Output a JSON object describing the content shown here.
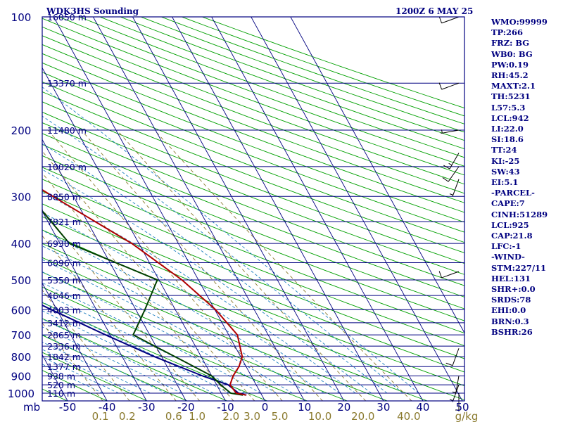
{
  "header": {
    "title": "WDK3HS Sounding",
    "datetime": "1200Z  6 MAY 25"
  },
  "side_panel": [
    "WMO:99999",
    "TP:266",
    "FRZ: BG",
    "WB0: BG",
    "PW:0.19",
    "RH:45.2",
    "MAXT:2.1",
    "TH:5231",
    "L57:5.3",
    "LCL:942",
    "LI:22.0",
    "SI:18.6",
    "TT:24",
    "KI:-25",
    "SW:43",
    "EI:5.1",
    "-PARCEL-",
    "CAPE:7",
    "CINH:51289",
    "LCL:925",
    "CAP:21.8",
    "LFC:-1",
    "-WIND-",
    "STM:227/11",
    "HEL:131",
    "SHR+:0.0",
    "SRDS:78",
    "EHI:0.0",
    "BRN:0.3",
    "BSHR:26"
  ],
  "colors": {
    "frame": "#000080",
    "isobar": "#000080",
    "isotherm": "#000080",
    "dry_adiabat": "#00a000",
    "moist_adiabat": "#2080c0",
    "mixing_ratio": "#8a7a2e",
    "temperature": "#b00000",
    "dewpoint": "#004000",
    "parcel": "#000080",
    "wind": "#000000"
  },
  "chart_data": {
    "type": "skew-t log-p",
    "y_axis_unit": "mb",
    "pressure_ticks": [
      100,
      200,
      300,
      400,
      500,
      600,
      700,
      800,
      900,
      1000
    ],
    "temperature_ticks": [
      -50,
      -40,
      -30,
      -20,
      -10,
      0,
      10,
      20,
      30,
      40,
      50
    ],
    "temperature_tick_labels": [
      "-50",
      "-40",
      "-30",
      "-20",
      "-10",
      "0",
      "10",
      "20",
      "30",
      "40",
      "50"
    ],
    "mixing_ratio_unit": "g/kg",
    "mixing_ratio_ticks": [
      0.1,
      0.2,
      0.6,
      1.0,
      2.0,
      3.0,
      5.0,
      10.0,
      20.0,
      40.0
    ],
    "mixing_ratio_labels": [
      "0.1",
      "0.2",
      "0.6",
      "1.0",
      "2.0",
      "3.0",
      "5.0",
      "10.0",
      "20.0",
      "40.0"
    ],
    "height_labels": [
      {
        "p": 100,
        "label": "16050 m"
      },
      {
        "p": 150,
        "label": "13370 m"
      },
      {
        "p": 200,
        "label": "11480 m"
      },
      {
        "p": 250,
        "label": "10020 m"
      },
      {
        "p": 300,
        "label": "8850 m"
      },
      {
        "p": 350,
        "label": "7821 m"
      },
      {
        "p": 400,
        "label": "6930 m"
      },
      {
        "p": 450,
        "label": "6096 m"
      },
      {
        "p": 500,
        "label": "5350 m"
      },
      {
        "p": 550,
        "label": "4646 m"
      },
      {
        "p": 600,
        "label": "4003 m"
      },
      {
        "p": 650,
        "label": "3412 m"
      },
      {
        "p": 700,
        "label": "2865 m"
      },
      {
        "p": 750,
        "label": "2336 m"
      },
      {
        "p": 800,
        "label": "1842 m"
      },
      {
        "p": 850,
        "label": "1377 m"
      },
      {
        "p": 900,
        "label": "938 m"
      },
      {
        "p": 950,
        "label": "520 m"
      },
      {
        "p": 1000,
        "label": "110 m"
      }
    ],
    "temperature": [
      [
        1012,
        -3.9
      ],
      [
        1000,
        -6.2
      ],
      [
        950,
        -6.6
      ],
      [
        900,
        -4.6
      ],
      [
        850,
        -1.8
      ],
      [
        800,
        0.4
      ],
      [
        700,
        2.2
      ],
      [
        600,
        0.2
      ],
      [
        500,
        -4.2
      ],
      [
        400,
        -11.8
      ],
      [
        300,
        -25.2
      ],
      [
        250,
        -33.4
      ],
      [
        200,
        -27.8
      ],
      [
        150,
        -33.0
      ],
      [
        100,
        -35.6
      ]
    ],
    "dewpoint": [
      [
        1012,
        -4.8
      ],
      [
        1000,
        -7.6
      ],
      [
        950,
        -9.0
      ],
      [
        900,
        -10.0
      ],
      [
        800,
        -16.6
      ],
      [
        700,
        -24.2
      ],
      [
        600,
        -17.7
      ],
      [
        500,
        -10.4
      ],
      [
        400,
        -27.6
      ],
      [
        300,
        -31.0
      ],
      [
        250,
        -42.0
      ],
      [
        200,
        -52.4
      ],
      [
        150,
        -63.0
      ],
      [
        100,
        -75.0
      ]
    ],
    "parcel": [
      [
        1012,
        -3.9
      ],
      [
        1000,
        -5.6
      ],
      [
        950,
        -7.1
      ],
      [
        900,
        -12.3
      ],
      [
        800,
        -21.8
      ],
      [
        700,
        -31.2
      ],
      [
        600,
        -41.4
      ],
      [
        500,
        -52.8
      ],
      [
        400,
        -65.5
      ],
      [
        300,
        -80.9
      ],
      [
        250,
        -90.0
      ],
      [
        200,
        -100.4
      ],
      [
        150,
        -113.2
      ],
      [
        100,
        -130.9
      ]
    ],
    "wind_barbs": [
      {
        "p": 100,
        "dir": 250,
        "kt": 10
      },
      {
        "p": 150,
        "dir": 250,
        "kt": 10
      },
      {
        "p": 200,
        "dir": 260,
        "kt": 5
      },
      {
        "p": 230,
        "dir": 210,
        "kt": 15
      },
      {
        "p": 250,
        "dir": 215,
        "kt": 10
      },
      {
        "p": 270,
        "dir": 200,
        "kt": 5
      },
      {
        "p": 475,
        "dir": 250,
        "kt": 10
      },
      {
        "p": 760,
        "dir": 200,
        "kt": 10
      },
      {
        "p": 900,
        "dir": 190,
        "kt": 5
      },
      {
        "p": 950,
        "dir": 200,
        "kt": 5
      },
      {
        "p": 1000,
        "dir": 180,
        "kt": 5
      }
    ]
  }
}
